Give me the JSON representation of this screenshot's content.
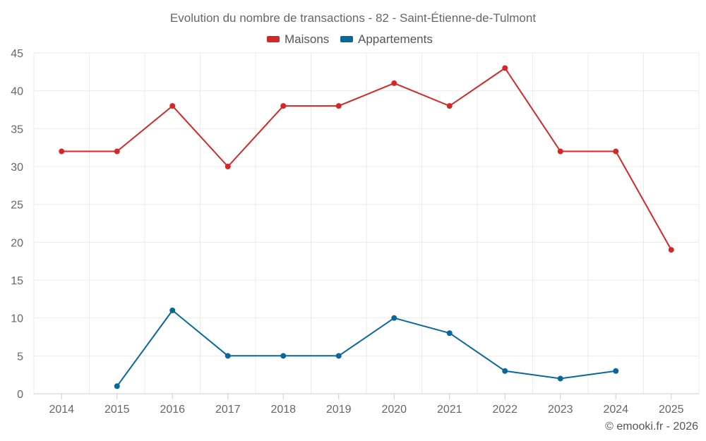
{
  "chart_data": {
    "type": "line",
    "title": "Evolution du nombre de transactions - 82 - Saint-Étienne-de-Tulmont",
    "x": [
      "2014",
      "2015",
      "2016",
      "2017",
      "2018",
      "2019",
      "2020",
      "2021",
      "2022",
      "2023",
      "2024",
      "2025"
    ],
    "series": [
      {
        "name": "Maisons",
        "color": "#d62728",
        "values": [
          32,
          32,
          38,
          30,
          38,
          38,
          41,
          38,
          43,
          32,
          32,
          19
        ]
      },
      {
        "name": "Appartements",
        "color": "#08689e",
        "values": [
          null,
          1,
          11,
          5,
          5,
          5,
          10,
          8,
          3,
          2,
          3,
          null
        ]
      }
    ],
    "ylim": [
      0,
      45
    ],
    "yticks": [
      "0",
      "5",
      "10",
      "15",
      "20",
      "25",
      "30",
      "35",
      "40",
      "45"
    ],
    "grid": true,
    "legend": "top-center",
    "xlabel": "",
    "ylabel": ""
  },
  "credit": "© emooki.fr - 2026"
}
